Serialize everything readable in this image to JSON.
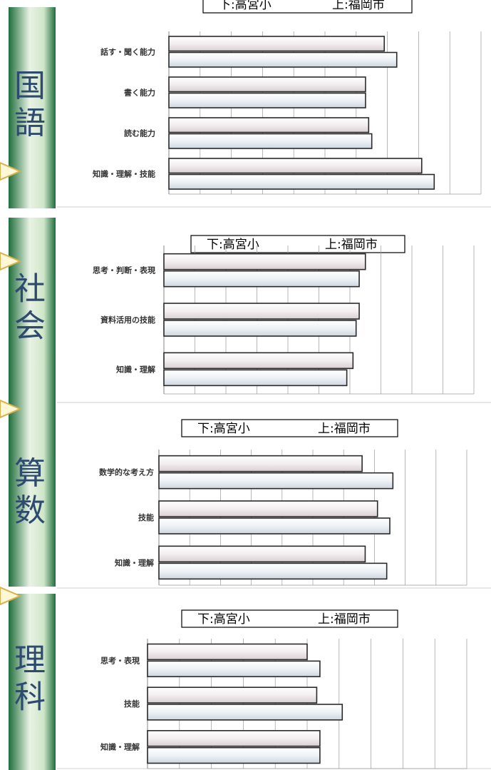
{
  "colors": {
    "bar_top": "#f3eef0",
    "bar_bottom": "#eef2f6",
    "bar_edge": "#2a2a2a",
    "green_dark": "#1f6e3c",
    "green_light": "#e9f3e4",
    "arrow": "#d8b24a",
    "grid": "#9a9a9a"
  },
  "chart_data": [
    {
      "type": "bar",
      "subject": "国語",
      "legend": [
        "下:高宮小",
        "上:福岡市"
      ],
      "categories": [
        "話す・聞く能力",
        "書く能力",
        "読む能力",
        "知識・理解・技能"
      ],
      "series": [
        {
          "name": "上:福岡市",
          "values": [
            69,
            63,
            64,
            81
          ]
        },
        {
          "name": "下:高宮小",
          "values": [
            73,
            63,
            65,
            85
          ]
        }
      ],
      "xlim": [
        0,
        100
      ],
      "grid": true,
      "legend_position": "top"
    },
    {
      "type": "bar",
      "subject": "社会",
      "legend": [
        "下:高宮小",
        "上:福岡市"
      ],
      "categories": [
        "思考・判断・表現",
        "資料活用の技能",
        "知識・理解"
      ],
      "series": [
        {
          "name": "上:福岡市",
          "values": [
            65,
            63,
            61
          ]
        },
        {
          "name": "下:高宮小",
          "values": [
            63,
            62,
            59
          ]
        }
      ],
      "xlim": [
        0,
        100
      ],
      "grid": true,
      "legend_position": "top"
    },
    {
      "type": "bar",
      "subject": "算数",
      "legend": [
        "下:高宮小",
        "上:福岡市"
      ],
      "categories": [
        "数学的な考え方",
        "技能",
        "知識・理解"
      ],
      "series": [
        {
          "name": "上:福岡市",
          "values": [
            66,
            71,
            67
          ]
        },
        {
          "name": "下:高宮小",
          "values": [
            76,
            75,
            74
          ]
        }
      ],
      "xlim": [
        0,
        100
      ],
      "grid": true,
      "legend_position": "top"
    },
    {
      "type": "bar",
      "subject": "理科",
      "legend": [
        "下:高宮小",
        "上:福岡市"
      ],
      "categories": [
        "思考・表現",
        "技能",
        "知識・理解"
      ],
      "series": [
        {
          "name": "上:福岡市",
          "values": [
            50,
            53,
            54
          ]
        },
        {
          "name": "下:高宮小",
          "values": [
            54,
            61,
            54
          ]
        }
      ],
      "xlim": [
        0,
        100
      ],
      "grid": true,
      "legend_position": "top"
    }
  ]
}
